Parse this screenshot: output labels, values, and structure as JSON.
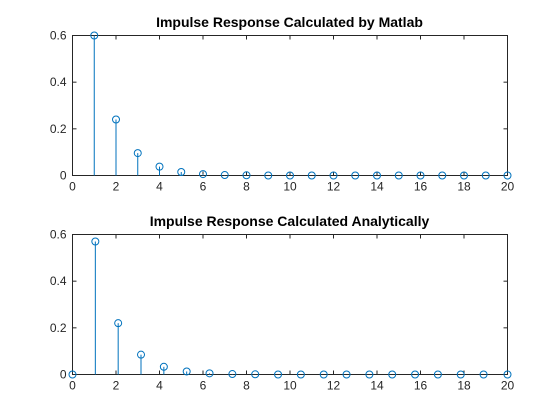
{
  "chart_data": [
    {
      "type": "stem",
      "title": "Impulse Response Calculated by Matlab",
      "xlabel": "",
      "ylabel": "",
      "xlim": [
        0,
        20
      ],
      "ylim": [
        0,
        0.6
      ],
      "xticks": [
        0,
        2,
        4,
        6,
        8,
        10,
        12,
        14,
        16,
        18,
        20
      ],
      "yticks": [
        0,
        0.2,
        0.4,
        0.6
      ],
      "xtick_labels": [
        "0",
        "2",
        "4",
        "6",
        "8",
        "10",
        "12",
        "14",
        "16",
        "18",
        "20"
      ],
      "ytick_labels": [
        "0",
        "0.2",
        "0.4",
        "0.6"
      ],
      "grid": false,
      "color": "#0072BD",
      "x": [
        1,
        2,
        3,
        4,
        5,
        6,
        7,
        8,
        9,
        10,
        11,
        12,
        13,
        14,
        15,
        16,
        17,
        18,
        19,
        20
      ],
      "y": [
        0.6,
        0.24,
        0.096,
        0.038,
        0.015,
        0.006,
        0.002,
        0.001,
        0.0,
        0.0,
        0.0,
        0.0,
        0.0,
        0.0,
        0.0,
        0.0,
        0.0,
        0.0,
        0.0,
        0.0
      ]
    },
    {
      "type": "stem",
      "title": "Impulse Response Calculated Analytically",
      "xlabel": "",
      "ylabel": "",
      "xlim": [
        0,
        20
      ],
      "ylim": [
        0,
        0.6
      ],
      "xticks": [
        0,
        2,
        4,
        6,
        8,
        10,
        12,
        14,
        16,
        18,
        20
      ],
      "yticks": [
        0,
        0.2,
        0.4,
        0.6
      ],
      "xtick_labels": [
        "0",
        "2",
        "4",
        "6",
        "8",
        "10",
        "12",
        "14",
        "16",
        "18",
        "20"
      ],
      "ytick_labels": [
        "0",
        "0.2",
        "0.4",
        "0.6"
      ],
      "grid": false,
      "color": "#0072BD",
      "x": [
        0,
        1.05,
        2.1,
        3.15,
        4.2,
        5.25,
        6.3,
        7.35,
        8.4,
        9.45,
        10.5,
        11.55,
        12.6,
        13.65,
        14.7,
        15.75,
        16.8,
        17.85,
        18.9,
        20
      ],
      "y": [
        0.0,
        0.57,
        0.22,
        0.085,
        0.033,
        0.013,
        0.005,
        0.002,
        0.001,
        0.0,
        0.0,
        0.0,
        0.0,
        0.0,
        0.0,
        0.0,
        0.0,
        0.0,
        0.0,
        0.0
      ]
    }
  ]
}
